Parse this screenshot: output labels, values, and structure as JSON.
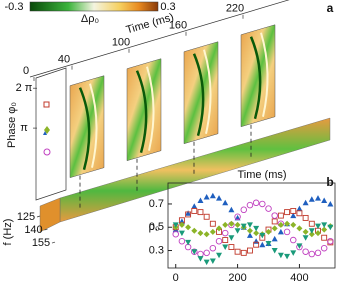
{
  "panel_a": {
    "panel_label": "a",
    "colorbar": {
      "label": "Δρ₀",
      "ticks": [
        -0.3,
        0.3
      ]
    },
    "time_axis": {
      "label": "Time (ms)",
      "ticks": [
        0,
        40,
        100,
        160,
        220
      ]
    },
    "phase_axis": {
      "label": "Phase φ₀",
      "ticks": [
        {
          "value": 6.283,
          "label": "2 π"
        },
        {
          "value": 3.1416,
          "label": "π"
        }
      ]
    },
    "freq_axis": {
      "label": "f (Hz)",
      "ticks": [
        125,
        140,
        155
      ]
    }
  },
  "chart_data": {
    "type": "scatter",
    "panel_label": "b",
    "xlabel": "Time (ms)",
    "ylabel": "ρ₀",
    "x": [
      0,
      20,
      40,
      60,
      80,
      100,
      120,
      140,
      160,
      180,
      200,
      220,
      240,
      260,
      280,
      300,
      320,
      340,
      360,
      380,
      400,
      420,
      440,
      460,
      480,
      500
    ],
    "xlim": [
      -25,
      515
    ],
    "ylim": [
      0.15,
      0.88
    ],
    "xticks": [
      0,
      200,
      400
    ],
    "yticks": [
      0.3,
      0.5,
      0.7
    ],
    "series": [
      {
        "color": "#1f5fbf",
        "marker": "triangle-up",
        "values": [
          0.48,
          0.55,
          0.62,
          0.68,
          0.73,
          0.76,
          0.77,
          0.75,
          0.71,
          0.65,
          0.58,
          0.5,
          0.43,
          0.38,
          0.35,
          0.36,
          0.4,
          0.46,
          0.53,
          0.6,
          0.66,
          0.71,
          0.74,
          0.75,
          0.73,
          0.7
        ]
      },
      {
        "color": "#c0392b",
        "marker": "square",
        "values": [
          0.5,
          0.56,
          0.61,
          0.64,
          0.63,
          0.59,
          0.53,
          0.46,
          0.39,
          0.33,
          0.29,
          0.28,
          0.3,
          0.35,
          0.41,
          0.48,
          0.55,
          0.6,
          0.63,
          0.64,
          0.62,
          0.58,
          0.53,
          0.47,
          0.41,
          0.37
        ]
      },
      {
        "color": "#c040c0",
        "marker": "circle",
        "values": [
          0.44,
          0.38,
          0.33,
          0.29,
          0.27,
          0.28,
          0.32,
          0.38,
          0.45,
          0.52,
          0.59,
          0.65,
          0.69,
          0.71,
          0.7,
          0.66,
          0.6,
          0.53,
          0.46,
          0.39,
          0.33,
          0.29,
          0.27,
          0.28,
          0.32,
          0.38
        ]
      },
      {
        "color": "#8cb428",
        "marker": "diamond",
        "values": [
          0.5,
          0.52,
          0.5,
          0.47,
          0.45,
          0.44,
          0.46,
          0.49,
          0.52,
          0.53,
          0.52,
          0.5,
          0.47,
          0.45,
          0.44,
          0.46,
          0.49,
          0.52,
          0.53,
          0.52,
          0.49,
          0.46,
          0.44,
          0.45,
          0.48,
          0.51
        ]
      },
      {
        "color": "#1a9a7a",
        "marker": "triangle-down",
        "values": [
          0.52,
          0.45,
          0.37,
          0.29,
          0.23,
          0.2,
          0.21,
          0.26,
          0.33,
          0.41,
          0.47,
          0.51,
          0.52,
          0.49,
          0.43,
          0.36,
          0.3,
          0.26,
          0.25,
          0.28,
          0.34,
          0.41,
          0.47,
          0.51,
          0.52,
          0.5
        ]
      }
    ]
  }
}
